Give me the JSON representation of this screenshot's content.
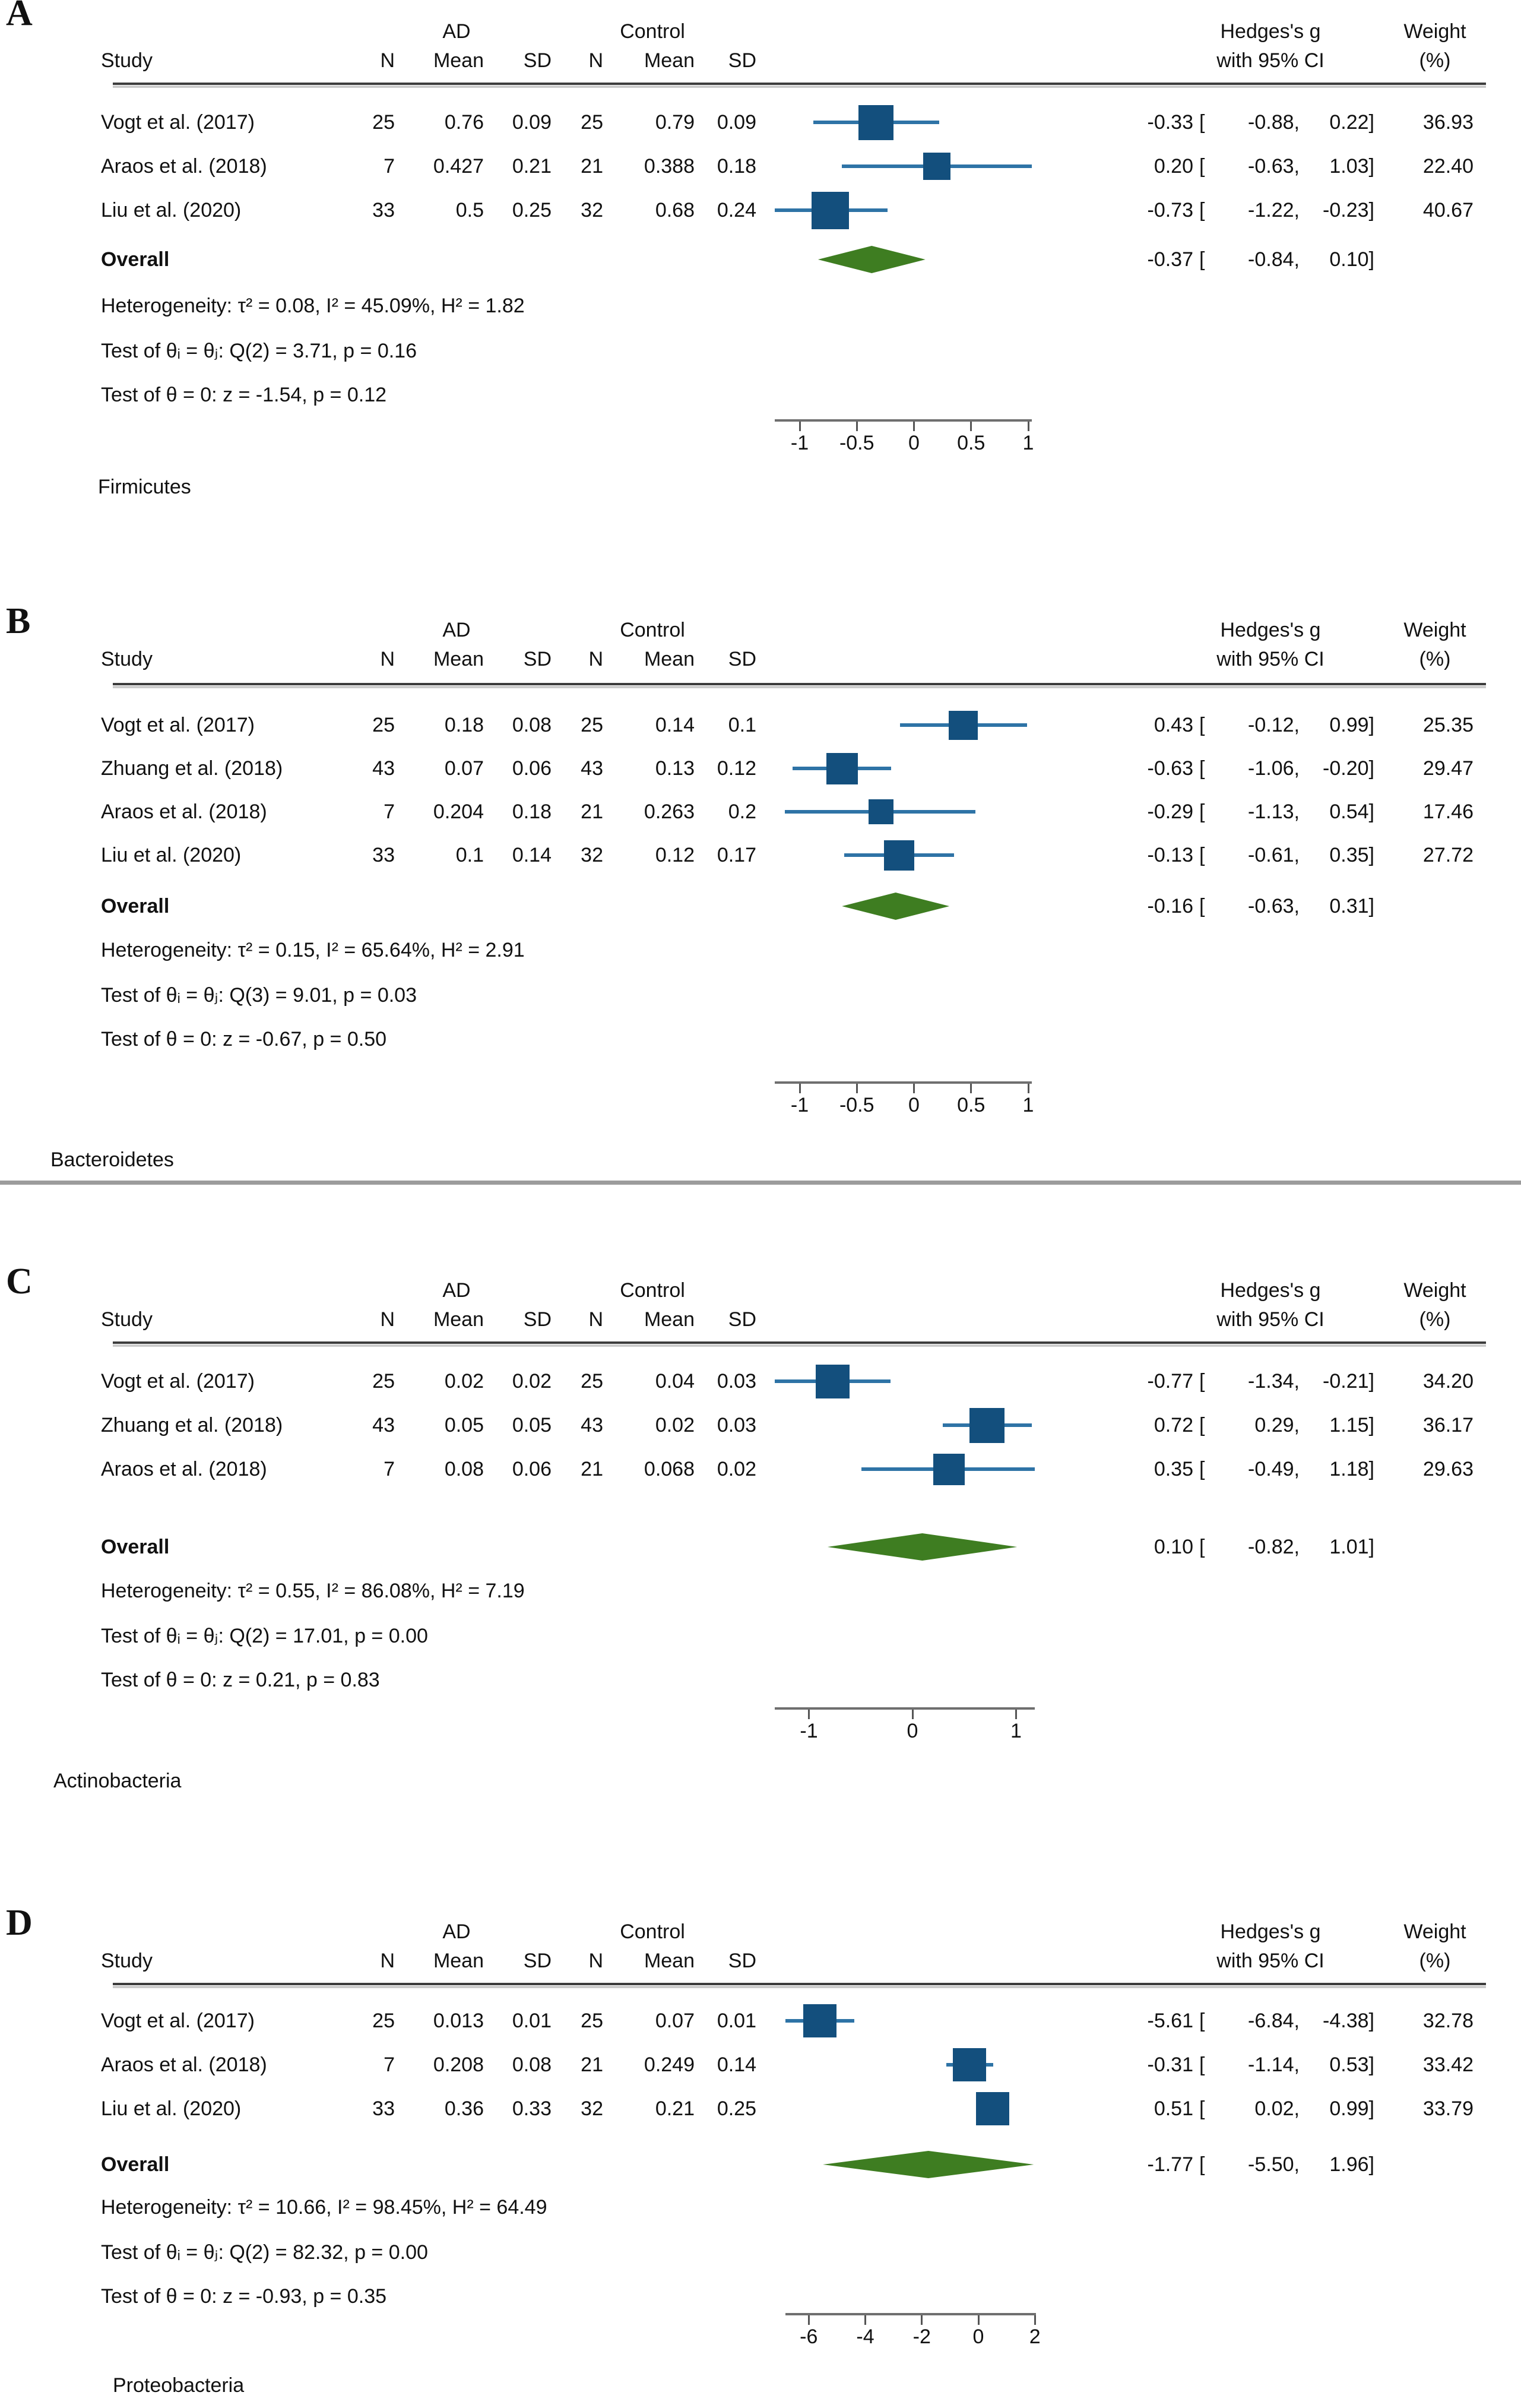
{
  "figure_title": "",
  "header": {
    "group_ad": "AD",
    "group_control": "Control",
    "study": "Study",
    "n": "N",
    "mean": "Mean",
    "sd": "SD",
    "effect_line1": "Hedges's g",
    "effect_line2": "with 95% CI",
    "weight_line1": "Weight",
    "weight_line2": "(%)",
    "overall_label": "Overall"
  },
  "colors": {
    "marker_square": "#134F7D",
    "ci_line": "#2E73A6",
    "diamond_green": "#3E7D21",
    "header_rule": "#3d3d3d",
    "header_rule_shadow": "#cccccc",
    "axis_line": "#6f6f6f",
    "tick": "#555555",
    "separator": "#9c9c9c",
    "text": "#111111"
  },
  "chart_data": [
    {
      "type": "forest",
      "panel": "A",
      "phylum": "Firmicutes",
      "xticks": [
        "-1",
        "-0.5",
        "0",
        "0.5",
        "1"
      ],
      "xlim": [
        -1.22,
        1.03
      ],
      "studies": [
        {
          "study": "Vogt et al. (2017)",
          "n_ad": "25",
          "mean_ad": "0.76",
          "sd_ad": "0.09",
          "n_ctrl": "25",
          "mean_ctrl": "0.79",
          "sd_ctrl": "0.09",
          "est": "-0.33",
          "ci_low": "-0.88",
          "ci_high": "0.22",
          "weight": "36.93"
        },
        {
          "study": "Araos et al. (2018)",
          "n_ad": "7",
          "mean_ad": "0.427",
          "sd_ad": "0.21",
          "n_ctrl": "21",
          "mean_ctrl": "0.388",
          "sd_ctrl": "0.18",
          "est": "0.20",
          "ci_low": "-0.63",
          "ci_high": "1.03",
          "weight": "22.40"
        },
        {
          "study": "Liu et al. (2020)",
          "n_ad": "33",
          "mean_ad": "0.5",
          "sd_ad": "0.25",
          "n_ctrl": "32",
          "mean_ctrl": "0.68",
          "sd_ctrl": "0.24",
          "est": "-0.73",
          "ci_low": "-1.22",
          "ci_high": "-0.23",
          "weight": "40.67"
        }
      ],
      "overall": {
        "est": "-0.37",
        "ci_low": "-0.84",
        "ci_high": "0.10"
      },
      "stats": [
        "Heterogeneity: τ² = 0.08, I² = 45.09%, H² = 1.82",
        "Test of θᵢ = θⱼ: Q(2) = 3.71, p = 0.16",
        "Test of θ = 0: z = -1.54, p = 0.12"
      ]
    },
    {
      "type": "forest",
      "panel": "B",
      "phylum": "Bacteroidetes",
      "xticks": [
        "-1",
        "-0.5",
        "0",
        "0.5",
        "1"
      ],
      "xlim": [
        -1.22,
        1.03
      ],
      "studies": [
        {
          "study": "Vogt et al. (2017)",
          "n_ad": "25",
          "mean_ad": "0.18",
          "sd_ad": "0.08",
          "n_ctrl": "25",
          "mean_ctrl": "0.14",
          "sd_ctrl": "0.1",
          "est": "0.43",
          "ci_low": "-0.12",
          "ci_high": "0.99",
          "weight": "25.35"
        },
        {
          "study": "Zhuang et al. (2018)",
          "n_ad": "43",
          "mean_ad": "0.07",
          "sd_ad": "0.06",
          "n_ctrl": "43",
          "mean_ctrl": "0.13",
          "sd_ctrl": "0.12",
          "est": "-0.63",
          "ci_low": "-1.06",
          "ci_high": "-0.20",
          "weight": "29.47"
        },
        {
          "study": "Araos et al. (2018)",
          "n_ad": "7",
          "mean_ad": "0.204",
          "sd_ad": "0.18",
          "n_ctrl": "21",
          "mean_ctrl": "0.263",
          "sd_ctrl": "0.2",
          "est": "-0.29",
          "ci_low": "-1.13",
          "ci_high": "0.54",
          "weight": "17.46"
        },
        {
          "study": "Liu et al. (2020)",
          "n_ad": "33",
          "mean_ad": "0.1",
          "sd_ad": "0.14",
          "n_ctrl": "32",
          "mean_ctrl": "0.12",
          "sd_ctrl": "0.17",
          "est": "-0.13",
          "ci_low": "-0.61",
          "ci_high": "0.35",
          "weight": "27.72"
        }
      ],
      "overall": {
        "est": "-0.16",
        "ci_low": "-0.63",
        "ci_high": "0.31"
      },
      "stats": [
        "Heterogeneity: τ² = 0.15, I² = 65.64%, H² = 2.91",
        "Test of θᵢ = θⱼ: Q(3) = 9.01, p = 0.03",
        "Test of θ = 0: z = -0.67, p = 0.50"
      ]
    },
    {
      "type": "forest",
      "panel": "C",
      "phylum": "Actinobacteria",
      "xticks": [
        "-1",
        "0",
        "1"
      ],
      "xlim": [
        -1.33,
        1.18
      ],
      "studies": [
        {
          "study": "Vogt et al. (2017)",
          "n_ad": "25",
          "mean_ad": "0.02",
          "sd_ad": "0.02",
          "n_ctrl": "25",
          "mean_ctrl": "0.04",
          "sd_ctrl": "0.03",
          "est": "-0.77",
          "ci_low": "-1.34",
          "ci_high": "-0.21",
          "weight": "34.20"
        },
        {
          "study": "Zhuang et al. (2018)",
          "n_ad": "43",
          "mean_ad": "0.05",
          "sd_ad": "0.05",
          "n_ctrl": "43",
          "mean_ctrl": "0.02",
          "sd_ctrl": "0.03",
          "est": "0.72",
          "ci_low": "0.29",
          "ci_high": "1.15",
          "weight": "36.17"
        },
        {
          "study": "Araos et al. (2018)",
          "n_ad": "7",
          "mean_ad": "0.08",
          "sd_ad": "0.06",
          "n_ctrl": "21",
          "mean_ctrl": "0.068",
          "sd_ctrl": "0.02",
          "est": "0.35",
          "ci_low": "-0.49",
          "ci_high": "1.18",
          "weight": "29.63"
        }
      ],
      "overall": {
        "est": "0.10",
        "ci_low": "-0.82",
        "ci_high": "1.01"
      },
      "stats": [
        "Heterogeneity: τ² = 0.55, I² = 86.08%, H² = 7.19",
        "Test of θᵢ = θⱼ: Q(2) = 17.01, p = 0.00",
        "Test of θ = 0: z = 0.21, p = 0.83"
      ]
    },
    {
      "type": "forest",
      "panel": "D",
      "phylum": "Proteobacteria",
      "xticks": [
        "-6",
        "-4",
        "-2",
        "0",
        "2"
      ],
      "xlim": [
        -6.84,
        2.0
      ],
      "studies": [
        {
          "study": "Vogt et al. (2017)",
          "n_ad": "25",
          "mean_ad": "0.013",
          "sd_ad": "0.01",
          "n_ctrl": "25",
          "mean_ctrl": "0.07",
          "sd_ctrl": "0.01",
          "est": "-5.61",
          "ci_low": "-6.84",
          "ci_high": "-4.38",
          "weight": "32.78"
        },
        {
          "study": "Araos et al. (2018)",
          "n_ad": "7",
          "mean_ad": "0.208",
          "sd_ad": "0.08",
          "n_ctrl": "21",
          "mean_ctrl": "0.249",
          "sd_ctrl": "0.14",
          "est": "-0.31",
          "ci_low": "-1.14",
          "ci_high": "0.53",
          "weight": "33.42"
        },
        {
          "study": "Liu et al. (2020)",
          "n_ad": "33",
          "mean_ad": "0.36",
          "sd_ad": "0.33",
          "n_ctrl": "32",
          "mean_ctrl": "0.21",
          "sd_ctrl": "0.25",
          "est": "0.51",
          "ci_low": "0.02",
          "ci_high": "0.99",
          "weight": "33.79"
        }
      ],
      "overall": {
        "est": "-1.77",
        "ci_low": "-5.50",
        "ci_high": "1.96"
      },
      "stats": [
        "Heterogeneity: τ² = 10.66, I² = 98.45%, H² = 64.49",
        "Test of θᵢ = θⱼ: Q(2) = 82.32, p = 0.00",
        "Test of θ = 0: z = -0.93, p = 0.35"
      ]
    }
  ]
}
